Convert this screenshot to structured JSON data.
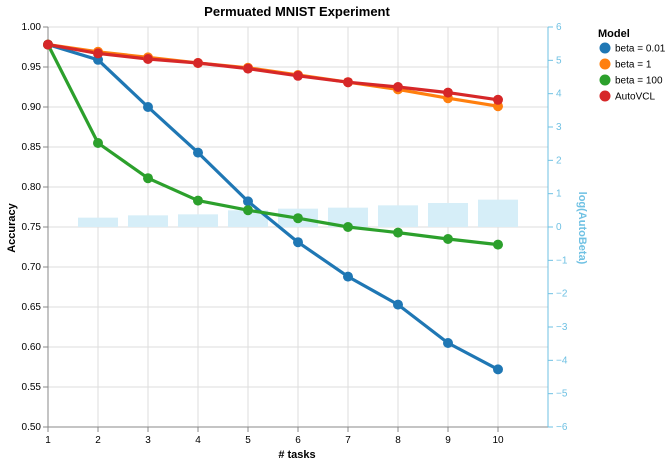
{
  "chart_data": {
    "type": "line",
    "title": "Permuated MNIST Experiment",
    "xlabel": "# tasks",
    "ylabel": "Accuracy",
    "y2label": "log(AutoBeta)",
    "x": [
      1,
      2,
      3,
      4,
      5,
      6,
      7,
      8,
      9,
      10
    ],
    "xlim": [
      1,
      11
    ],
    "ylim": [
      0.5,
      1.0
    ],
    "y2lim": [
      -6,
      6
    ],
    "x_ticks": [
      "1",
      "2",
      "3",
      "4",
      "5",
      "6",
      "7",
      "8",
      "9",
      "10"
    ],
    "y_ticks": [
      "0.50",
      "0.55",
      "0.60",
      "0.65",
      "0.70",
      "0.75",
      "0.80",
      "0.85",
      "0.90",
      "0.95",
      "1.00"
    ],
    "y2_ticks": [
      "−6",
      "−5",
      "−4",
      "−3",
      "−2",
      "−1",
      "0",
      "1",
      "2",
      "3",
      "4",
      "5",
      "6"
    ],
    "grid": true,
    "legend_title": "Model",
    "legend_position": "right",
    "series": [
      {
        "name": "beta = 0.01",
        "color": "#1f77b4",
        "values": [
          0.978,
          0.959,
          0.9,
          0.843,
          0.782,
          0.731,
          0.688,
          0.653,
          0.605,
          0.572
        ]
      },
      {
        "name": "beta = 1",
        "color": "#ff7f0e",
        "values": [
          0.978,
          0.969,
          0.962,
          0.955,
          0.949,
          0.94,
          0.931,
          0.922,
          0.911,
          0.901
        ]
      },
      {
        "name": "beta = 100",
        "color": "#2ca02c",
        "values": [
          0.978,
          0.855,
          0.811,
          0.783,
          0.771,
          0.761,
          0.75,
          0.743,
          0.735,
          0.728
        ]
      },
      {
        "name": "AutoVCL",
        "color": "#d62728",
        "values": [
          0.978,
          0.967,
          0.96,
          0.955,
          0.948,
          0.939,
          0.931,
          0.925,
          0.918,
          0.909
        ]
      }
    ],
    "bars": {
      "axis": "right",
      "color": "#d6eef8",
      "x": [
        2,
        3,
        4,
        5,
        6,
        7,
        8,
        9,
        10
      ],
      "values": [
        0.28,
        0.35,
        0.38,
        0.5,
        0.55,
        0.58,
        0.65,
        0.72,
        0.82
      ]
    }
  }
}
